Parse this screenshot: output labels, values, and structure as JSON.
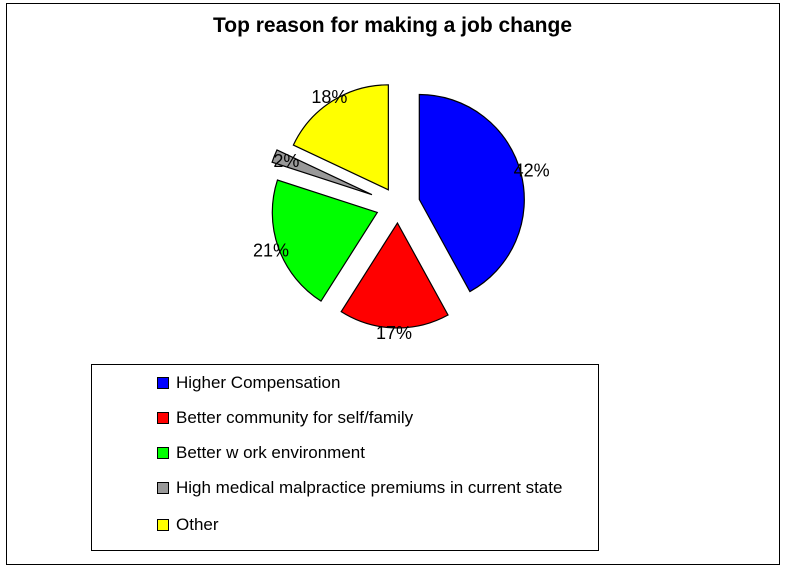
{
  "chart_data": {
    "type": "pie",
    "title": "Top reason for making a job change",
    "slices": [
      {
        "label": "Higher Compensation",
        "value": 42,
        "display": "42%",
        "color": "#0000ff"
      },
      {
        "label": "Better community for self/family",
        "value": 17,
        "display": "17%",
        "color": "#ff0000"
      },
      {
        "label": "Better w ork environment",
        "value": 21,
        "display": "21%",
        "color": "#00ff00"
      },
      {
        "label": "High medical malpractice premiums in current state",
        "value": 2,
        "display": "2%",
        "color": "#999999"
      },
      {
        "label": "Other",
        "value": 18,
        "display": "18%",
        "color": "#ffff00"
      }
    ],
    "exploded": true,
    "start_angle": "12 o'clock, clockwise",
    "legend_position": "bottom"
  }
}
